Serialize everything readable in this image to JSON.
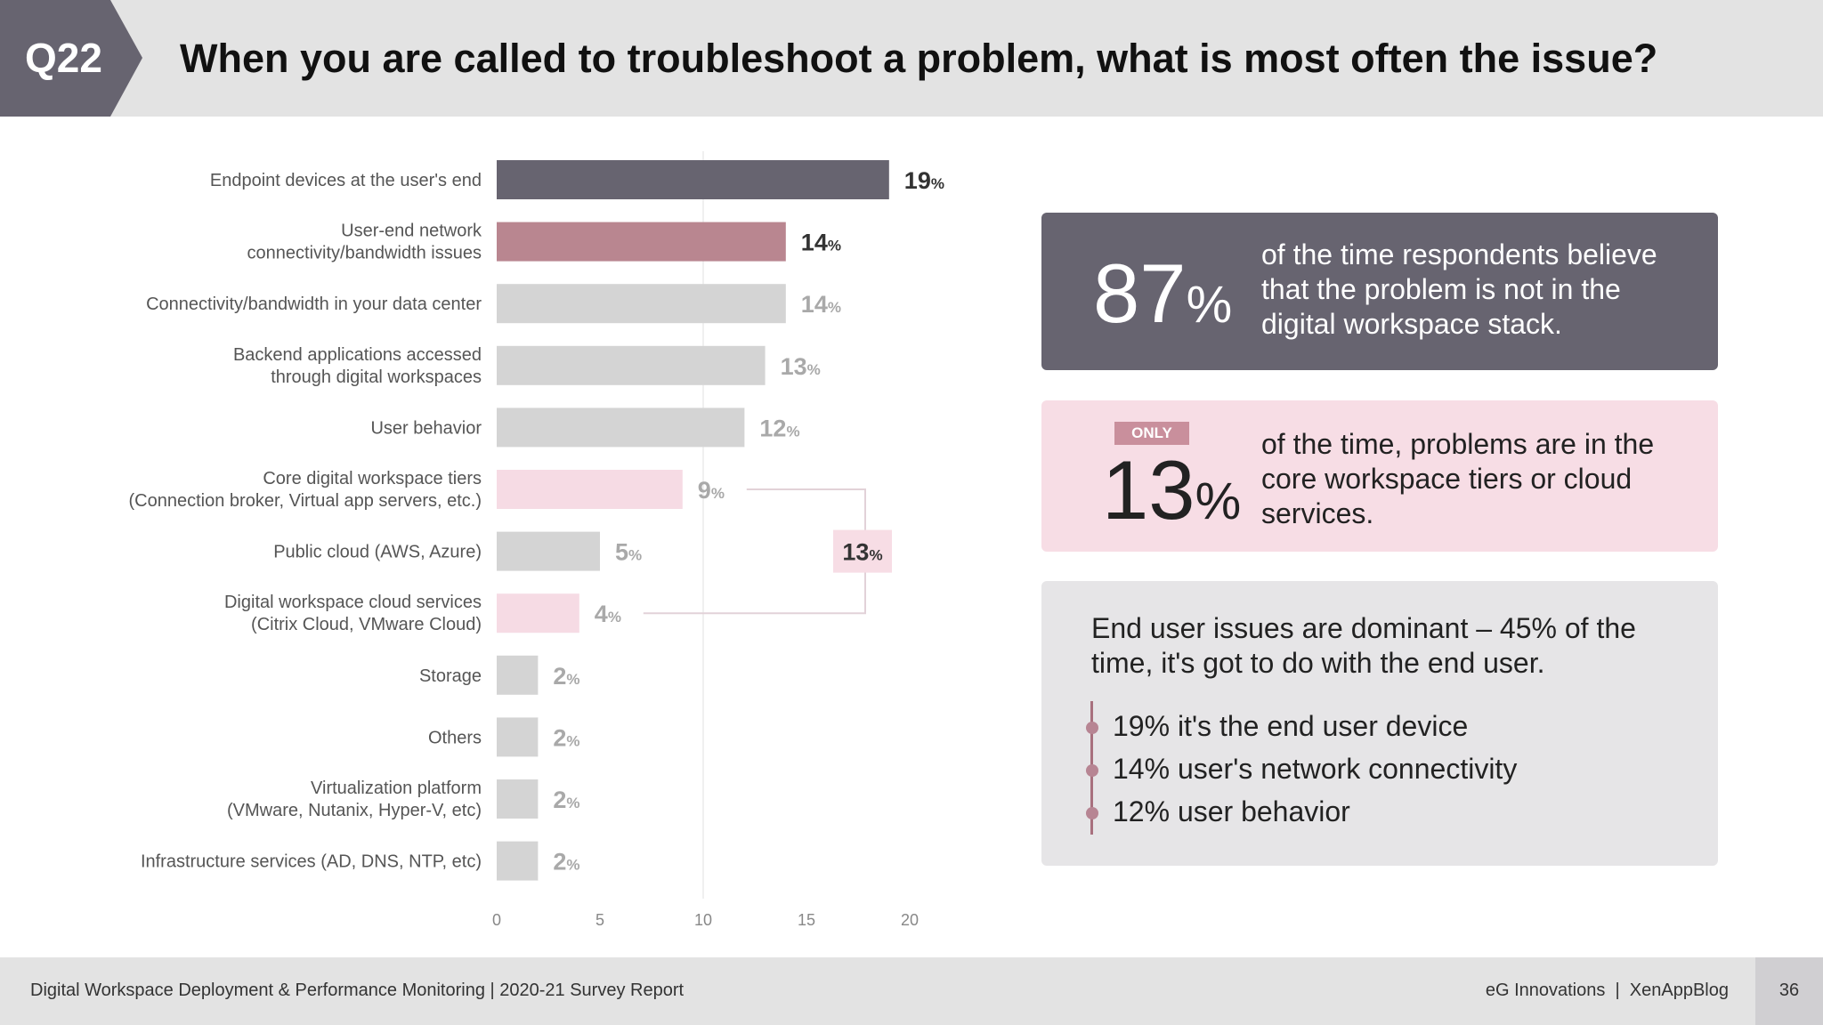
{
  "header": {
    "question": "Q22",
    "title": "When you are called to troubleshoot a problem, what is most often the issue?"
  },
  "colors": {
    "dark": "#676470",
    "rose": "#b98690",
    "gray": "#d4d4d4",
    "pink": "#f6dbe4"
  },
  "chart_data": {
    "type": "bar",
    "orientation": "horizontal",
    "categories": [
      [
        "Endpoint devices at the user's end"
      ],
      [
        "User-end network",
        "connectivity/bandwidth issues"
      ],
      [
        "Connectivity/bandwidth in your data center"
      ],
      [
        "Backend applications accessed",
        "through digital workspaces"
      ],
      [
        "User behavior"
      ],
      [
        "Core digital workspace tiers",
        "(Connection broker, Virtual app servers, etc.)"
      ],
      [
        "Public cloud (AWS, Azure)"
      ],
      [
        "Digital workspace cloud services",
        "(Citrix Cloud, VMware Cloud)"
      ],
      [
        "Storage"
      ],
      [
        "Others"
      ],
      [
        "Virtualization platform",
        "(VMware, Nutanix, Hyper-V, etc)"
      ],
      [
        "Infrastructure services (AD, DNS, NTP, etc)"
      ]
    ],
    "values": [
      19,
      14,
      14,
      13,
      12,
      9,
      5,
      4,
      2,
      2,
      2,
      2
    ],
    "value_labels": [
      "19",
      "14",
      "14",
      "13",
      "12",
      "9",
      "5",
      "4",
      "2",
      "2",
      "2",
      "2"
    ],
    "bar_colors": [
      "dark",
      "rose",
      "gray",
      "gray",
      "gray",
      "pink",
      "gray",
      "pink",
      "gray",
      "gray",
      "gray",
      "gray"
    ],
    "unit": "%",
    "xlim": [
      0,
      20
    ],
    "xticks": [
      "0",
      "5",
      "10",
      "15",
      "20"
    ],
    "gridline_at": 10,
    "bracket": {
      "label": "13",
      "unit": "%",
      "spans": [
        "Core digital workspace tiers",
        "Digital workspace cloud services"
      ]
    }
  },
  "cards": {
    "card1": {
      "number": "87",
      "pct": "%",
      "text": [
        "of the time respondents believe",
        "that the problem is not in the",
        "digital workspace stack."
      ]
    },
    "card2": {
      "badge": "ONLY",
      "number": "13",
      "pct": "%",
      "text": [
        "of the time, problems are in the",
        "core workspace tiers or cloud",
        "services."
      ]
    },
    "card3": {
      "intro": "End user issues are dominant – 45% of the time, it's got to do with the end user.",
      "bullets": [
        "19% it's the end user device",
        "14% user's network connectivity",
        "12% user behavior"
      ]
    }
  },
  "footer": {
    "left": "Digital Workspace Deployment & Performance Monitoring | 2020-21 Survey Report",
    "right": "eG Innovations  |  XenAppBlog",
    "page": "36"
  }
}
